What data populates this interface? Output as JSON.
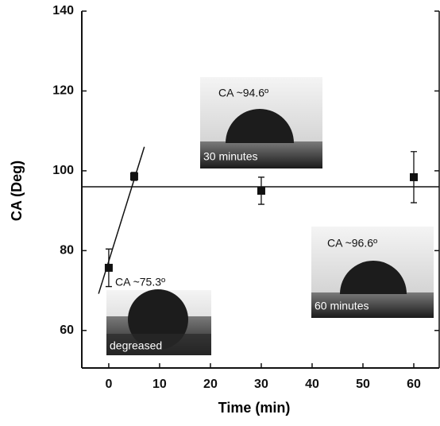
{
  "chart_data": {
    "type": "scatter",
    "xlabel": "Time (min)",
    "ylabel": "CA (Deg)",
    "x": [
      0,
      5,
      30,
      60
    ],
    "values": [
      75.7,
      98.6,
      95.0,
      98.4
    ],
    "errors": [
      4.7,
      1.0,
      3.4,
      6.4
    ],
    "color": "#111111",
    "lines": [
      {
        "x": [
          -2,
          7
        ],
        "values": [
          69.2,
          106
        ]
      },
      {
        "x": [
          -5.3,
          65
        ],
        "values": [
          96.0,
          96.0
        ]
      }
    ],
    "xlim": [
      -5.3,
      65
    ],
    "ylim": [
      50.6,
      140
    ],
    "xticks": [
      0,
      10,
      20,
      30,
      40,
      50,
      60
    ],
    "yticks": [
      60,
      80,
      100,
      120,
      140
    ],
    "annotations": [
      "CA ~94.6º",
      "30 minutes",
      "CA ~75.3º",
      "degreased",
      "CA ~96.6º",
      "60 minutes"
    ]
  }
}
